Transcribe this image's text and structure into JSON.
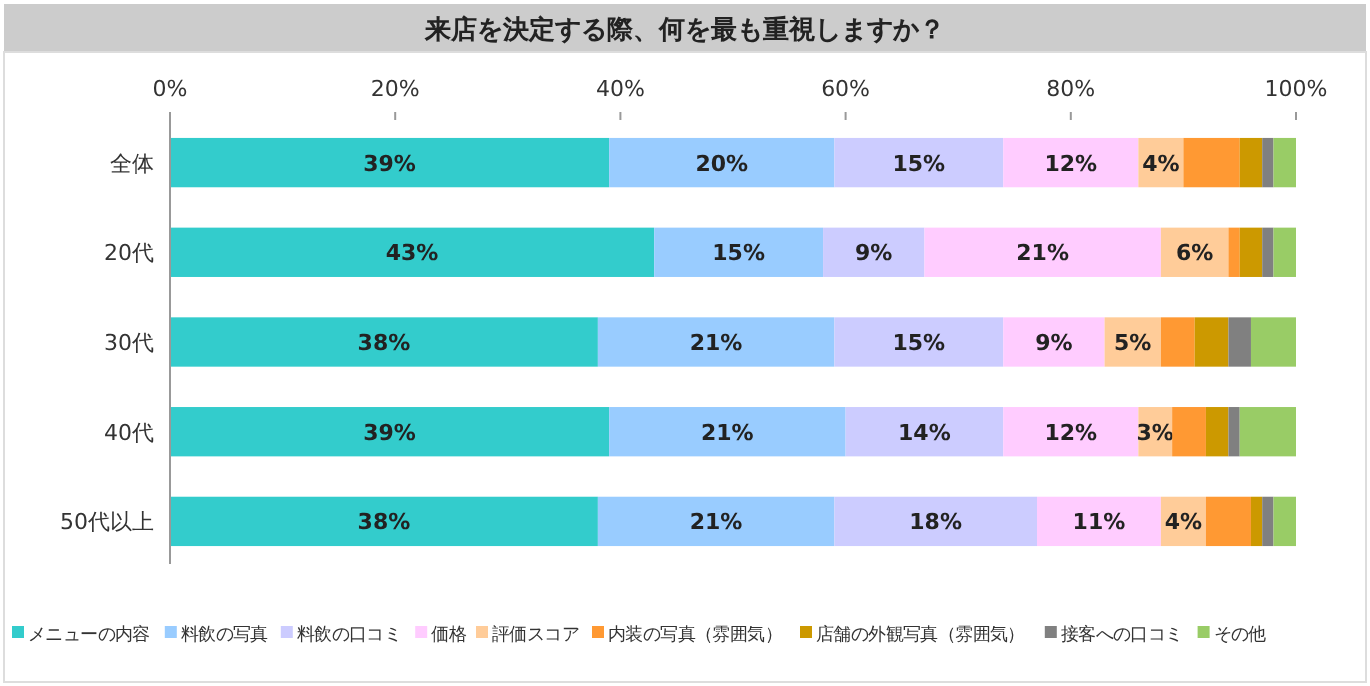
{
  "chart_data": {
    "type": "bar",
    "orientation": "horizontal",
    "stacked": true,
    "title": "来店を決定する際、何を最も重視しますか？",
    "categories": [
      "全体",
      "20代",
      "30代",
      "40代",
      "50代以上"
    ],
    "xlim": [
      0,
      100
    ],
    "xticks": [
      {
        "value": 0,
        "label": "0%"
      },
      {
        "value": 20,
        "label": "20%"
      },
      {
        "value": 40,
        "label": "40%"
      },
      {
        "value": 60,
        "label": "60%"
      },
      {
        "value": 80,
        "label": "80%"
      },
      {
        "value": 100,
        "label": "100%"
      }
    ],
    "legend": "bottom",
    "grid": false,
    "series": [
      {
        "name": "メニューの内容",
        "color": "#33cccc",
        "values": [
          39,
          43,
          38,
          39,
          38
        ],
        "value_labels": [
          "39%",
          "43%",
          "38%",
          "39%",
          "38%"
        ]
      },
      {
        "name": "料飲の写真",
        "color": "#99ccff",
        "values": [
          20,
          15,
          21,
          21,
          21
        ],
        "value_labels": [
          "20%",
          "15%",
          "21%",
          "21%",
          "21%"
        ]
      },
      {
        "name": "料飲の口コミ",
        "color": "#ccccff",
        "values": [
          15,
          9,
          15,
          14,
          18
        ],
        "value_labels": [
          "15%",
          "9%",
          "15%",
          "14%",
          "18%"
        ]
      },
      {
        "name": "価格",
        "color": "#ffccff",
        "values": [
          12,
          21,
          9,
          12,
          11
        ],
        "value_labels": [
          "12%",
          "21%",
          "9%",
          "12%",
          "11%"
        ]
      },
      {
        "name": "評価スコア",
        "color": "#ffcc99",
        "values": [
          4,
          6,
          5,
          3,
          4
        ],
        "value_labels": [
          "4%",
          "6%",
          "5%",
          "3%",
          "4%"
        ]
      },
      {
        "name": "内装の写真（雰囲気）",
        "color": "#ff9933",
        "values": [
          5,
          1,
          3,
          3,
          4
        ]
      },
      {
        "name": "店舗の外観写真（雰囲気）",
        "color": "#cc9900",
        "values": [
          2,
          2,
          3,
          2,
          1
        ]
      },
      {
        "name": "接客への口コミ",
        "color": "#808080",
        "values": [
          1,
          1,
          2,
          1,
          1
        ]
      },
      {
        "name": "その他",
        "color": "#99cc66",
        "values": [
          2,
          2,
          4,
          5,
          2
        ]
      }
    ]
  }
}
